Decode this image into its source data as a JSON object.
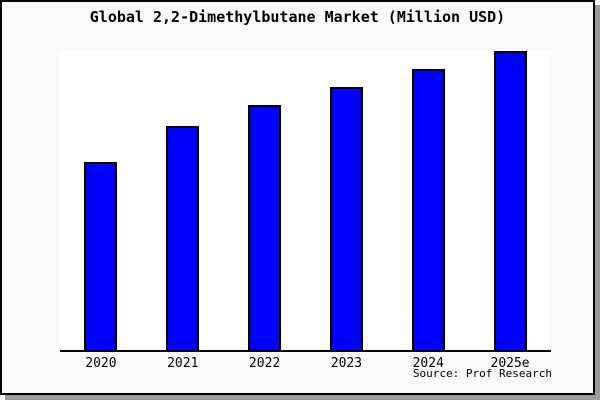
{
  "window": {
    "background": "#fafafa",
    "frame_border_color": "#000000",
    "frame_shadow_color": "#9c9c9c"
  },
  "chart_data": {
    "type": "bar",
    "title": "Global 2,2-Dimethylbutane Market (Million USD)",
    "categories": [
      "2020",
      "2021",
      "2022",
      "2023",
      "2024",
      "2025e"
    ],
    "values": [
      63,
      75,
      82,
      88,
      94,
      100
    ],
    "values_note": "no y-axis ticks, labels or gridlines are shown in the chart; values are relative estimates read from bar heights with 2025e = 100",
    "ylim": [
      0,
      100.3
    ],
    "xlabel": "",
    "ylabel": "",
    "legend": "none",
    "grid": false,
    "bar_color": "#0000ff",
    "bar_border_color": "#000000",
    "plot_background": "#ffffff",
    "source": "Source: Prof Research"
  }
}
